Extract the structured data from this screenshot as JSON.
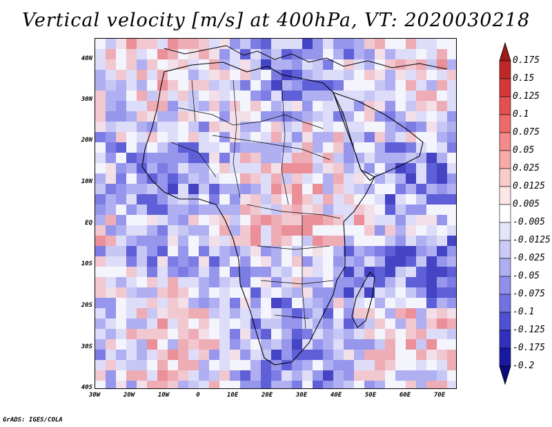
{
  "title": "Vertical velocity [m/s] at 400hPa, VT: 2020030218",
  "footer": "GrADS: IGES/COLA",
  "axes": {
    "latitude_ticks": [
      "40N",
      "30N",
      "20N",
      "10N",
      "EQ",
      "10S",
      "20S",
      "30S",
      "40S"
    ],
    "longitude_ticks": [
      "30W",
      "20W",
      "10W",
      "0",
      "10E",
      "20E",
      "30E",
      "40E",
      "50E",
      "60E",
      "70E"
    ]
  },
  "colorbar": {
    "units": "m/s",
    "levels": [
      "0.175",
      "0.15",
      "0.125",
      "0.1",
      "0.075",
      "0.05",
      "0.025",
      "0.0125",
      "0.005",
      "-0.005",
      "-0.0125",
      "-0.025",
      "-0.05",
      "-0.075",
      "-0.1",
      "-0.125",
      "-0.175",
      "-0.2"
    ],
    "colors": [
      "#a01818",
      "#c02828",
      "#d63838",
      "#e45050",
      "#ee6a6a",
      "#f48a8a",
      "#f8aaaa",
      "#fbcaca",
      "#fde6e6",
      "#ffffff",
      "#e4e4fa",
      "#cacaf6",
      "#aeaef2",
      "#9090ec",
      "#7272e2",
      "#5050d4",
      "#3030bc",
      "#1818a0",
      "#0a0a7e"
    ]
  },
  "map": {
    "variable": "Vertical velocity",
    "level": "400hPa",
    "valid_time": "2020030218",
    "lon_range": [
      -30,
      75
    ],
    "lat_range": [
      -40,
      45
    ]
  }
}
